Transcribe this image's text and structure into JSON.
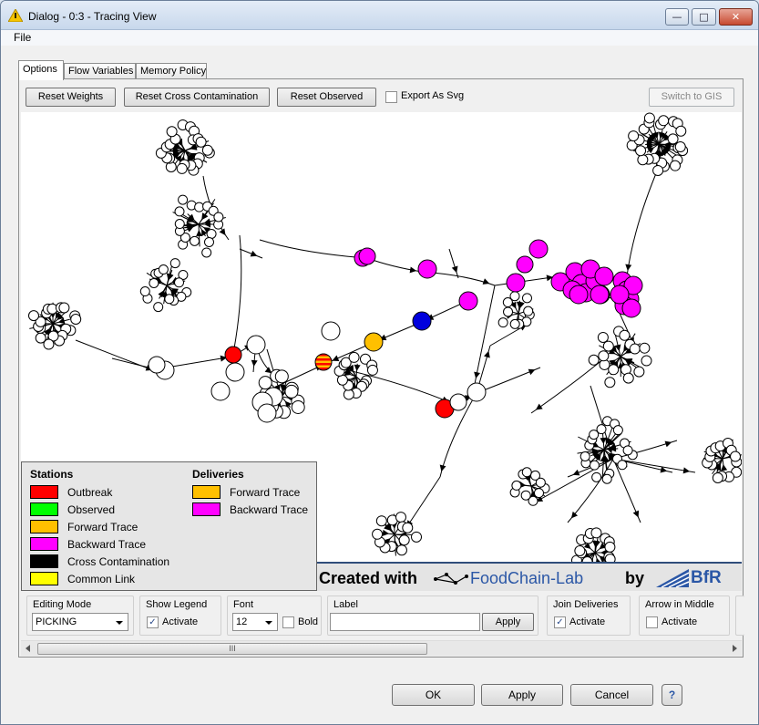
{
  "window": {
    "title": "Dialog - 0:3 - Tracing View"
  },
  "menu": {
    "file": "File"
  },
  "tabs": [
    {
      "label": "Options"
    },
    {
      "label": "Flow Variables"
    },
    {
      "label": "Memory Policy"
    }
  ],
  "toolbar": {
    "reset_weights": "Reset Weights",
    "reset_cross": "Reset Cross Contamination",
    "reset_observed": "Reset Observed",
    "export_svg": "Export As Svg",
    "switch_gis": "Switch to GIS"
  },
  "legend": {
    "stations_title": "Stations",
    "deliveries_title": "Deliveries",
    "stations": [
      {
        "label": "Outbreak",
        "color": "#ff0000"
      },
      {
        "label": "Observed",
        "color": "#00ff00"
      },
      {
        "label": "Forward Trace",
        "color": "#ffc000"
      },
      {
        "label": "Backward Trace",
        "color": "#ff00ff"
      },
      {
        "label": "Cross Contamination",
        "color": "#000000"
      },
      {
        "label": "Common Link",
        "color": "#ffff00"
      }
    ],
    "deliveries": [
      {
        "label": "Forward Trace",
        "color": "#ffc000"
      },
      {
        "label": "Backward Trace",
        "color": "#ff00ff"
      }
    ]
  },
  "watermark": {
    "created": "Created with",
    "brand": "FoodChain-Lab",
    "by": "by",
    "org": "BfR"
  },
  "controls": {
    "editing_mode": {
      "title": "Editing Mode",
      "value": "PICKING"
    },
    "show_legend": {
      "title": "Show Legend",
      "label": "Activate",
      "checked": true
    },
    "font": {
      "title": "Font",
      "size": "12",
      "bold_label": "Bold"
    },
    "label": {
      "title": "Label",
      "value": "",
      "apply": "Apply"
    },
    "join_deliveries": {
      "title": "Join Deliveries",
      "label": "Activate",
      "checked": true
    },
    "arrow_middle": {
      "title": "Arrow in Middle",
      "label": "Activate",
      "checked": false
    }
  },
  "scrollbar": {
    "thumb_glyph": "III"
  },
  "buttons": {
    "ok": "OK",
    "apply": "Apply",
    "cancel": "Cancel",
    "help": "?"
  },
  "graph_colors": {
    "outbreak": "#ff0000",
    "forward": "#ffc000",
    "backward": "#ff00ff",
    "observed_blue": "#0000dd"
  }
}
